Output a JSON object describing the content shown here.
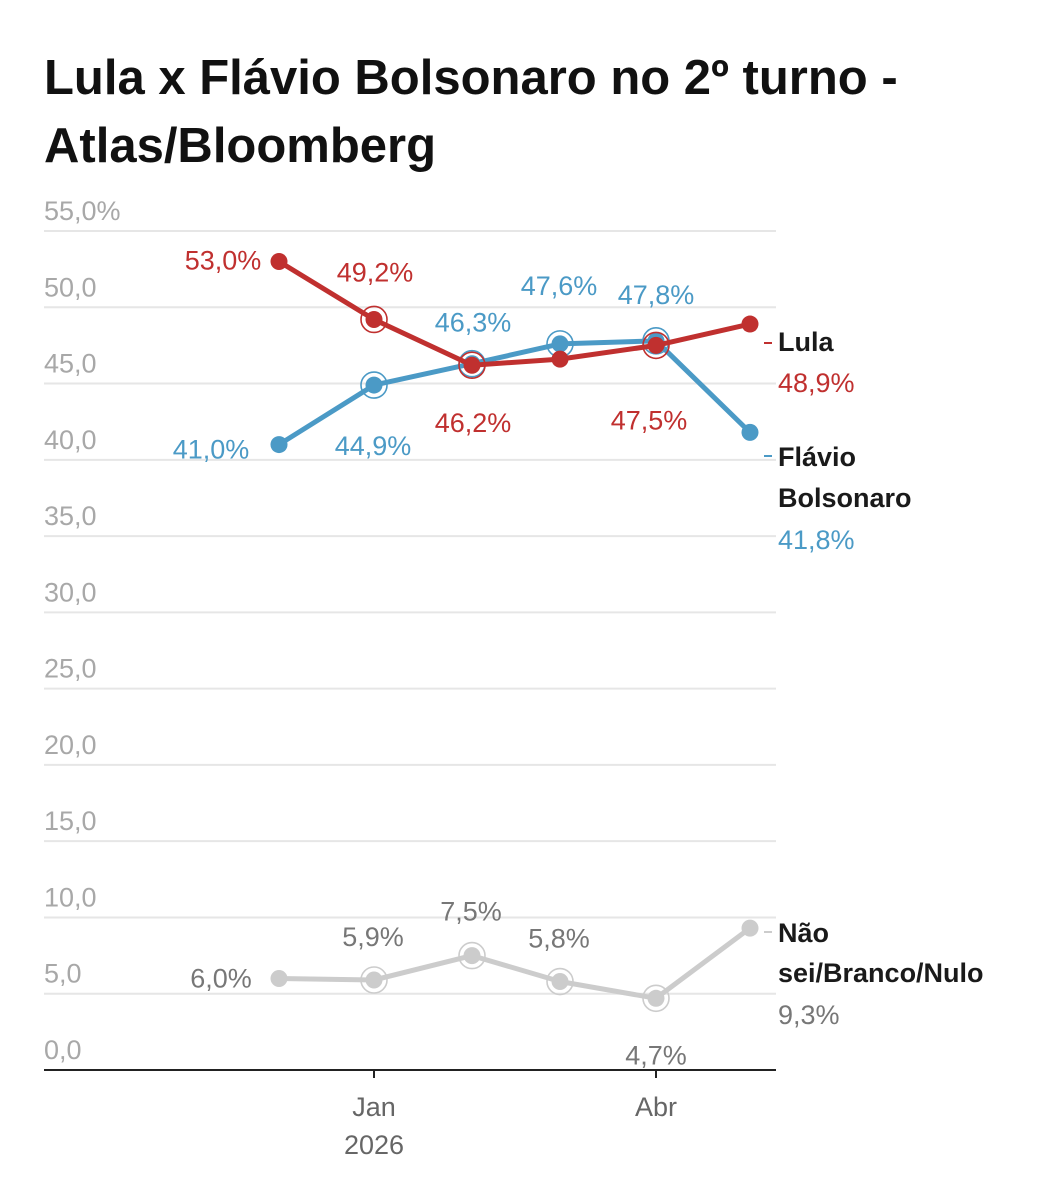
{
  "title": "Lula x Flávio Bolsonaro no 2º turno - Atlas/Bloomberg",
  "colors": {
    "lula": "#c0302f",
    "flavio": "#4b9ac6",
    "nao_sei": "#cccccc",
    "grid": "#e6e6e6",
    "axis": "#222222"
  },
  "chart_data": {
    "type": "line",
    "title": "Lula x Flávio Bolsonaro no 2º turno - Atlas/Bloomberg",
    "xlabel": "",
    "ylabel": "",
    "ylim": [
      0,
      55
    ],
    "y_ticks": [
      "0,0",
      "5,0",
      "10,0",
      "15,0",
      "20,0",
      "25,0",
      "30,0",
      "35,0",
      "40,0",
      "45,0",
      "50,0",
      "55,0%"
    ],
    "x_tick_labels": [
      {
        "lines": [
          "Jan",
          "2026"
        ],
        "at_index": 1
      },
      {
        "lines": [
          "Abr"
        ],
        "at_index": 4
      }
    ],
    "point_count": 6,
    "grid": true,
    "legend": "end-of-line labels (right)",
    "series": [
      {
        "key": "lula",
        "name": "Lula",
        "name_lines": [
          "Lula"
        ],
        "values": [
          53.0,
          49.2,
          46.2,
          46.6,
          47.5,
          48.9
        ],
        "labels": [
          "53,0%",
          "49,2%",
          "46,2%",
          "",
          "47,5%",
          ""
        ],
        "last_label": "48,9%",
        "highlighted": [
          false,
          true,
          true,
          false,
          true,
          false
        ]
      },
      {
        "key": "flavio",
        "name": "Flávio Bolsonaro",
        "name_lines": [
          "Flávio",
          "Bolsonaro"
        ],
        "values": [
          41.0,
          44.9,
          46.3,
          47.6,
          47.8,
          41.8
        ],
        "labels": [
          "41,0%",
          "44,9%",
          "46,3%",
          "47,6%",
          "47,8%",
          ""
        ],
        "last_label": "41,8%",
        "highlighted": [
          false,
          true,
          true,
          true,
          true,
          false
        ]
      },
      {
        "key": "nao_sei",
        "name": "Não sei/Branco/Nulo",
        "name_lines": [
          "Não",
          "sei/Branco/Nulo"
        ],
        "values": [
          6.0,
          5.9,
          7.5,
          5.8,
          4.7,
          9.3
        ],
        "labels": [
          "6,0%",
          "5,9%",
          "7,5%",
          "5,8%",
          "4,7%",
          ""
        ],
        "last_label": "9,3%",
        "highlighted": [
          false,
          true,
          true,
          true,
          true,
          false
        ]
      }
    ]
  }
}
